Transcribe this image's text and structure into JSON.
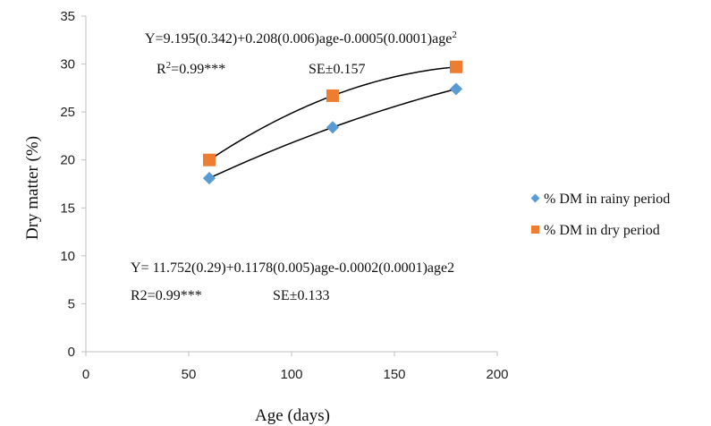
{
  "chart_data": {
    "type": "scatter",
    "xlabel": "Age (days)",
    "ylabel": "Dry matter (%)",
    "xlim": [
      0,
      200
    ],
    "ylim": [
      0,
      35
    ],
    "x_ticks": [
      "0",
      "50",
      "100",
      "150",
      "200"
    ],
    "y_ticks": [
      "0",
      "5",
      "10",
      "15",
      "20",
      "25",
      "30",
      "35"
    ],
    "grid": false,
    "legend_position": "right",
    "series": [
      {
        "name": "% DM in rainy period",
        "marker": "diamond",
        "color": "#5b9bd5",
        "x": [
          60,
          120,
          180
        ],
        "y": [
          18.1,
          23.4,
          27.4
        ],
        "trend": {
          "type": "polynomial2",
          "color": "#000000"
        }
      },
      {
        "name": "% DM in dry period",
        "marker": "square",
        "color": "#ed7d31",
        "x": [
          60,
          120,
          180
        ],
        "y": [
          20.0,
          26.7,
          29.7
        ],
        "trend": {
          "type": "polynomial2",
          "color": "#000000"
        }
      }
    ],
    "annotations": {
      "dry_equation_main": "Y=9.195(0.342)+0.208(0.006)age-0.0005(0.0001)age",
      "dry_equation_sup": "2",
      "dry_r2_prefix": "R",
      "dry_r2_sup": "2",
      "dry_r2_rest": "=0.99***",
      "dry_se": "SE±0.157",
      "rainy_equation": "Y= 11.752(0.29)+0.1178(0.005)age-0.0002(0.0001)age2",
      "rainy_r2": "R2=0.99***",
      "rainy_se": "SE±0.133"
    }
  }
}
